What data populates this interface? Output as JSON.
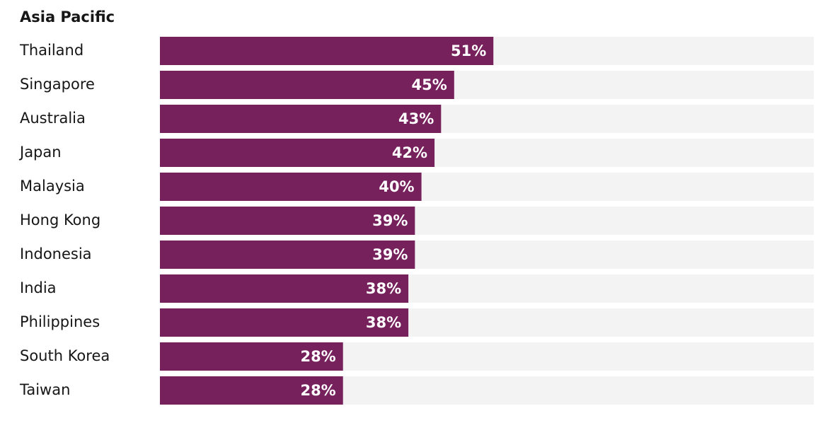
{
  "chart_data": {
    "type": "bar",
    "orientation": "horizontal",
    "title": "Asia Pacific",
    "categories": [
      "Thailand",
      "Singapore",
      "Australia",
      "Japan",
      "Malaysia",
      "Hong Kong",
      "Indonesia",
      "India",
      "Philippines",
      "South Korea",
      "Taiwan"
    ],
    "values": [
      51,
      45,
      43,
      42,
      40,
      39,
      39,
      38,
      38,
      28,
      28
    ],
    "value_labels": [
      "51%",
      "45%",
      "43%",
      "42%",
      "40%",
      "39%",
      "39%",
      "38%",
      "38%",
      "28%",
      "28%"
    ],
    "color": "#76205c",
    "track_color": "#f3f3f3",
    "xlim": [
      0,
      100
    ]
  }
}
